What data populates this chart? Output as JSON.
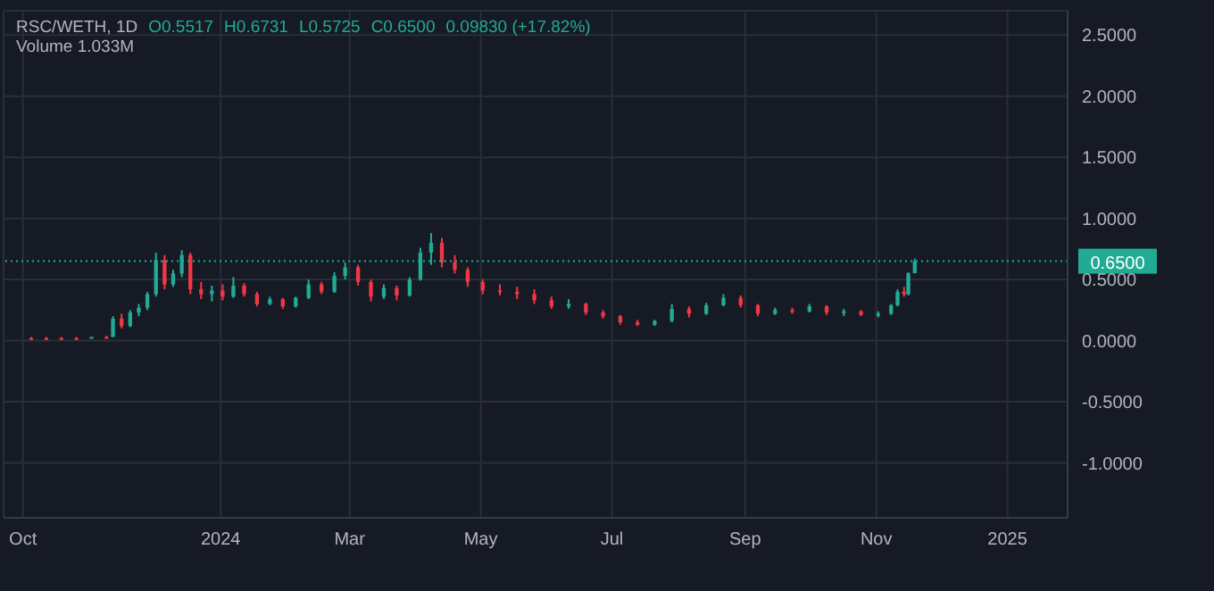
{
  "chart_data": {
    "type": "candlestick",
    "title": "RSC/WETH, 1D",
    "annotations": [
      "O0.5517",
      "H0.6731",
      "L0.5725",
      "C0.6500",
      "0.09830 (+17.82%)",
      "Volume 1.033M"
    ],
    "x": [
      "2023-10-05",
      "2023-10-12",
      "2023-10-19",
      "2023-10-26",
      "2023-11-02",
      "2023-11-09",
      "2023-11-12",
      "2023-11-16",
      "2023-11-20",
      "2023-11-24",
      "2023-11-28",
      "2023-12-02",
      "2023-12-06",
      "2023-12-10",
      "2023-12-14",
      "2023-12-18",
      "2023-12-23",
      "2023-12-28",
      "2024-01-02",
      "2024-01-07",
      "2024-01-12",
      "2024-01-18",
      "2024-01-24",
      "2024-01-30",
      "2024-02-05",
      "2024-02-11",
      "2024-02-17",
      "2024-02-23",
      "2024-02-28",
      "2024-03-05",
      "2024-03-11",
      "2024-03-17",
      "2024-03-23",
      "2024-03-29",
      "2024-04-03",
      "2024-04-08",
      "2024-04-13",
      "2024-04-19",
      "2024-04-25",
      "2024-05-02",
      "2024-05-10",
      "2024-05-18",
      "2024-05-26",
      "2024-06-03",
      "2024-06-11",
      "2024-06-19",
      "2024-06-27",
      "2024-07-05",
      "2024-07-13",
      "2024-07-21",
      "2024-07-29",
      "2024-08-06",
      "2024-08-14",
      "2024-08-22",
      "2024-08-30",
      "2024-09-07",
      "2024-09-15",
      "2024-09-23",
      "2024-10-01",
      "2024-10-09",
      "2024-10-17",
      "2024-10-25",
      "2024-11-02",
      "2024-11-08",
      "2024-11-11",
      "2024-11-14",
      "2024-11-16",
      "2024-11-19"
    ],
    "ohlc": [
      [
        0.02,
        0.03,
        0.01,
        0.02
      ],
      [
        0.02,
        0.03,
        0.01,
        0.02
      ],
      [
        0.02,
        0.03,
        0.01,
        0.02
      ],
      [
        0.02,
        0.03,
        0.01,
        0.02
      ],
      [
        0.02,
        0.03,
        0.02,
        0.03
      ],
      [
        0.03,
        0.04,
        0.02,
        0.03
      ],
      [
        0.03,
        0.2,
        0.03,
        0.18
      ],
      [
        0.18,
        0.22,
        0.1,
        0.12
      ],
      [
        0.12,
        0.25,
        0.11,
        0.23
      ],
      [
        0.23,
        0.3,
        0.2,
        0.27
      ],
      [
        0.27,
        0.4,
        0.25,
        0.38
      ],
      [
        0.38,
        0.72,
        0.36,
        0.66
      ],
      [
        0.66,
        0.7,
        0.42,
        0.46
      ],
      [
        0.46,
        0.58,
        0.44,
        0.55
      ],
      [
        0.55,
        0.74,
        0.52,
        0.7
      ],
      [
        0.7,
        0.72,
        0.38,
        0.42
      ],
      [
        0.42,
        0.48,
        0.34,
        0.38
      ],
      [
        0.38,
        0.45,
        0.32,
        0.41
      ],
      [
        0.41,
        0.46,
        0.33,
        0.36
      ],
      [
        0.36,
        0.52,
        0.35,
        0.45
      ],
      [
        0.45,
        0.47,
        0.36,
        0.38
      ],
      [
        0.38,
        0.4,
        0.28,
        0.3
      ],
      [
        0.3,
        0.36,
        0.29,
        0.34
      ],
      [
        0.34,
        0.35,
        0.26,
        0.28
      ],
      [
        0.28,
        0.36,
        0.27,
        0.35
      ],
      [
        0.35,
        0.5,
        0.34,
        0.46
      ],
      [
        0.46,
        0.48,
        0.38,
        0.4
      ],
      [
        0.4,
        0.56,
        0.39,
        0.53
      ],
      [
        0.53,
        0.64,
        0.5,
        0.6
      ],
      [
        0.6,
        0.62,
        0.45,
        0.48
      ],
      [
        0.48,
        0.5,
        0.32,
        0.36
      ],
      [
        0.36,
        0.46,
        0.34,
        0.43
      ],
      [
        0.43,
        0.45,
        0.33,
        0.37
      ],
      [
        0.37,
        0.52,
        0.36,
        0.5
      ],
      [
        0.5,
        0.76,
        0.49,
        0.72
      ],
      [
        0.72,
        0.88,
        0.62,
        0.8
      ],
      [
        0.8,
        0.84,
        0.6,
        0.64
      ],
      [
        0.64,
        0.7,
        0.55,
        0.58
      ],
      [
        0.58,
        0.6,
        0.44,
        0.48
      ],
      [
        0.48,
        0.5,
        0.38,
        0.41
      ],
      [
        0.41,
        0.46,
        0.37,
        0.4
      ],
      [
        0.4,
        0.44,
        0.34,
        0.38
      ],
      [
        0.38,
        0.42,
        0.3,
        0.33
      ],
      [
        0.33,
        0.36,
        0.26,
        0.28
      ],
      [
        0.28,
        0.34,
        0.26,
        0.3
      ],
      [
        0.3,
        0.31,
        0.21,
        0.23
      ],
      [
        0.23,
        0.25,
        0.18,
        0.2
      ],
      [
        0.2,
        0.21,
        0.13,
        0.15
      ],
      [
        0.15,
        0.17,
        0.12,
        0.13
      ],
      [
        0.13,
        0.17,
        0.12,
        0.16
      ],
      [
        0.16,
        0.3,
        0.15,
        0.26
      ],
      [
        0.26,
        0.28,
        0.19,
        0.22
      ],
      [
        0.22,
        0.31,
        0.21,
        0.29
      ],
      [
        0.29,
        0.38,
        0.28,
        0.35
      ],
      [
        0.35,
        0.37,
        0.27,
        0.29
      ],
      [
        0.29,
        0.3,
        0.2,
        0.22
      ],
      [
        0.22,
        0.27,
        0.21,
        0.25
      ],
      [
        0.25,
        0.27,
        0.22,
        0.24
      ],
      [
        0.24,
        0.3,
        0.23,
        0.28
      ],
      [
        0.28,
        0.29,
        0.21,
        0.23
      ],
      [
        0.23,
        0.26,
        0.2,
        0.24
      ],
      [
        0.24,
        0.25,
        0.2,
        0.21
      ],
      [
        0.21,
        0.24,
        0.19,
        0.22
      ],
      [
        0.22,
        0.3,
        0.21,
        0.29
      ],
      [
        0.29,
        0.42,
        0.28,
        0.4
      ],
      [
        0.4,
        0.44,
        0.36,
        0.38
      ],
      [
        0.38,
        0.56,
        0.37,
        0.55
      ],
      [
        0.5517,
        0.6731,
        0.5517,
        0.65
      ]
    ],
    "colors": [
      "#f23645",
      "#f23645",
      "#f23645",
      "#f23645",
      "#22ab94",
      "#f23645",
      "#22ab94",
      "#f23645",
      "#22ab94",
      "#22ab94",
      "#22ab94",
      "#22ab94",
      "#f23645",
      "#22ab94",
      "#22ab94",
      "#f23645",
      "#f23645",
      "#22ab94",
      "#f23645",
      "#22ab94",
      "#f23645",
      "#f23645",
      "#22ab94",
      "#f23645",
      "#22ab94",
      "#22ab94",
      "#f23645",
      "#22ab94",
      "#22ab94",
      "#f23645",
      "#f23645",
      "#22ab94",
      "#f23645",
      "#22ab94",
      "#22ab94",
      "#22ab94",
      "#f23645",
      "#f23645",
      "#f23645",
      "#f23645",
      "#f23645",
      "#f23645",
      "#f23645",
      "#f23645",
      "#22ab94",
      "#f23645",
      "#f23645",
      "#f23645",
      "#f23645",
      "#22ab94",
      "#22ab94",
      "#f23645",
      "#22ab94",
      "#22ab94",
      "#f23645",
      "#f23645",
      "#22ab94",
      "#f23645",
      "#22ab94",
      "#f23645",
      "#22ab94",
      "#f23645",
      "#22ab94",
      "#22ab94",
      "#22ab94",
      "#f23645",
      "#22ab94",
      "#22ab94"
    ],
    "xlim": [
      "2023-09-22",
      "2025-01-29"
    ],
    "xticks": [
      {
        "value": "2023-10-01",
        "label": "Oct"
      },
      {
        "value": "2024-01-01",
        "label": "2024"
      },
      {
        "value": "2024-03-01",
        "label": "Mar"
      },
      {
        "value": "2024-05-01",
        "label": "May"
      },
      {
        "value": "2024-07-01",
        "label": "Jul"
      },
      {
        "value": "2024-09-01",
        "label": "Sep"
      },
      {
        "value": "2024-11-01",
        "label": "Nov"
      },
      {
        "value": "2025-01-01",
        "label": "2025"
      }
    ],
    "ylim": [
      -1.45,
      2.7
    ],
    "yticks": [
      {
        "value": -1,
        "label": "-1.0000"
      },
      {
        "value": -0.5,
        "label": "-0.5000"
      },
      {
        "value": 0,
        "label": "0.0000"
      },
      {
        "value": 0.5,
        "label": "0.5000"
      },
      {
        "value": 1,
        "label": "1.0000"
      },
      {
        "value": 1.5,
        "label": "1.5000"
      },
      {
        "value": 2,
        "label": "2.0000"
      },
      {
        "value": 2.5,
        "label": "2.5000"
      }
    ],
    "ref_lines": [
      {
        "axis": "y",
        "value": 0.65,
        "label": "0.6500",
        "color": "#22ab94",
        "line_style": "dotted"
      }
    ],
    "grid": true
  }
}
